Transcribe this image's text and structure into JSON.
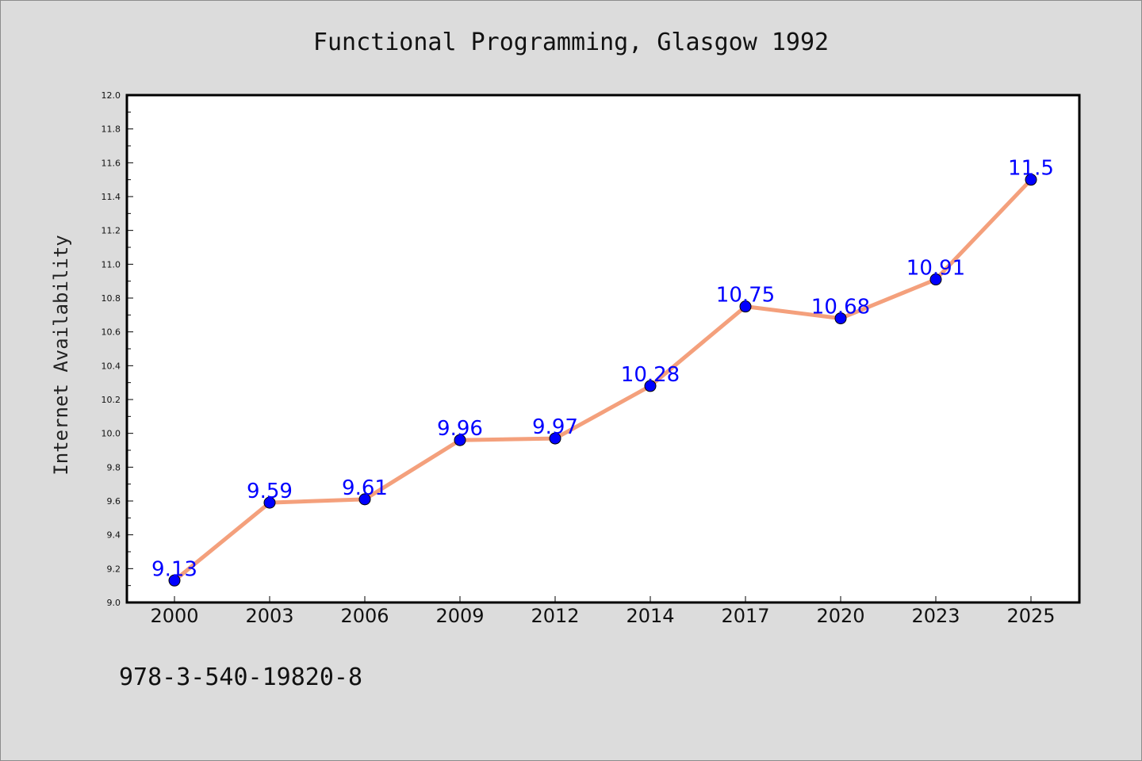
{
  "chart_data": {
    "type": "line",
    "title": "Functional Programming, Glasgow 1992",
    "ylabel": "Internet Availability",
    "xlabel": "",
    "categories": [
      "2000",
      "2003",
      "2006",
      "2009",
      "2012",
      "2014",
      "2017",
      "2020",
      "2023",
      "2025"
    ],
    "series": [
      {
        "values": [
          9.13,
          9.59,
          9.61,
          9.96,
          9.97,
          10.28,
          10.75,
          10.68,
          10.91,
          11.5
        ]
      }
    ],
    "data_labels": [
      "9.13",
      "9.59",
      "9.61",
      "9.96",
      "9.97",
      "10.28",
      "10.75",
      "10.68",
      "10.91",
      "11.5"
    ],
    "ylim": [
      9.0,
      12.0
    ],
    "yticks": [
      "9.0",
      "9.2",
      "9.4",
      "9.6",
      "9.8",
      "10.0",
      "10.2",
      "10.4",
      "10.6",
      "10.8",
      "11.0",
      "11.2",
      "11.4",
      "11.6",
      "11.8",
      "12.0"
    ],
    "grid": false,
    "line_color": "#f4a07c",
    "marker_color": "#0000ff",
    "label_color": "#0000ff"
  },
  "footer_text": "978-3-540-19820-8"
}
